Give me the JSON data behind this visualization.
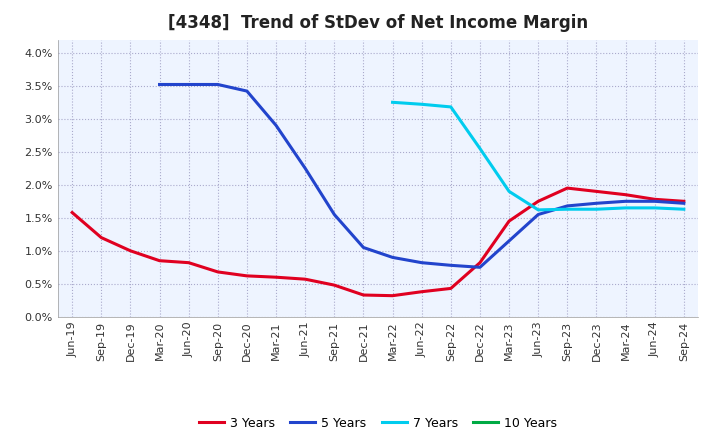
{
  "title": "[4348]  Trend of StDev of Net Income Margin",
  "ylim": [
    0.0,
    0.042
  ],
  "ytick_vals": [
    0.0,
    0.005,
    0.01,
    0.015,
    0.02,
    0.025,
    0.03,
    0.035,
    0.04
  ],
  "x_labels": [
    "Jun-19",
    "Sep-19",
    "Dec-19",
    "Mar-20",
    "Jun-20",
    "Sep-20",
    "Dec-20",
    "Mar-21",
    "Jun-21",
    "Sep-21",
    "Dec-21",
    "Mar-22",
    "Jun-22",
    "Sep-22",
    "Dec-22",
    "Mar-23",
    "Jun-23",
    "Sep-23",
    "Dec-23",
    "Mar-24",
    "Jun-24",
    "Sep-24"
  ],
  "series_3y": {
    "label": "3 Years",
    "color": "#e00020",
    "data_x": [
      0,
      1,
      2,
      3,
      4,
      5,
      6,
      7,
      8,
      9,
      10,
      11,
      12,
      13,
      14,
      15,
      16,
      17,
      18,
      19,
      20,
      21
    ],
    "data_y": [
      0.0158,
      0.012,
      0.01,
      0.0085,
      0.0082,
      0.0068,
      0.0062,
      0.006,
      0.0057,
      0.0048,
      0.0033,
      0.0032,
      0.0038,
      0.0043,
      0.0082,
      0.0145,
      0.0175,
      0.0195,
      0.019,
      0.0185,
      0.0178,
      0.0175
    ]
  },
  "series_5y": {
    "label": "5 Years",
    "color": "#2244cc",
    "data_x": [
      3,
      4,
      5,
      6,
      7,
      8,
      9,
      10,
      11,
      12,
      13,
      14,
      15,
      16,
      17,
      18,
      19,
      20,
      21
    ],
    "data_y": [
      0.0352,
      0.0352,
      0.0352,
      0.0342,
      0.029,
      0.0225,
      0.0155,
      0.0105,
      0.009,
      0.0082,
      0.0078,
      0.0075,
      0.0115,
      0.0155,
      0.0168,
      0.0172,
      0.0175,
      0.0175,
      0.0172
    ]
  },
  "series_7y": {
    "label": "7 Years",
    "color": "#00ccee",
    "data_x": [
      11,
      12,
      13,
      14,
      15,
      16,
      17,
      18,
      19,
      20,
      21
    ],
    "data_y": [
      0.0325,
      0.0322,
      0.0318,
      0.0255,
      0.019,
      0.0162,
      0.0163,
      0.0163,
      0.0165,
      0.0165,
      0.0163
    ]
  },
  "series_10y": {
    "label": "10 Years",
    "color": "#00aa44",
    "data_x": [],
    "data_y": []
  },
  "background_color": "#ffffff",
  "plot_bg_color": "#eef4ff",
  "grid_color": "#aaaacc",
  "title_fontsize": 12,
  "tick_fontsize": 8,
  "legend_fontsize": 9,
  "linewidth": 2.2
}
